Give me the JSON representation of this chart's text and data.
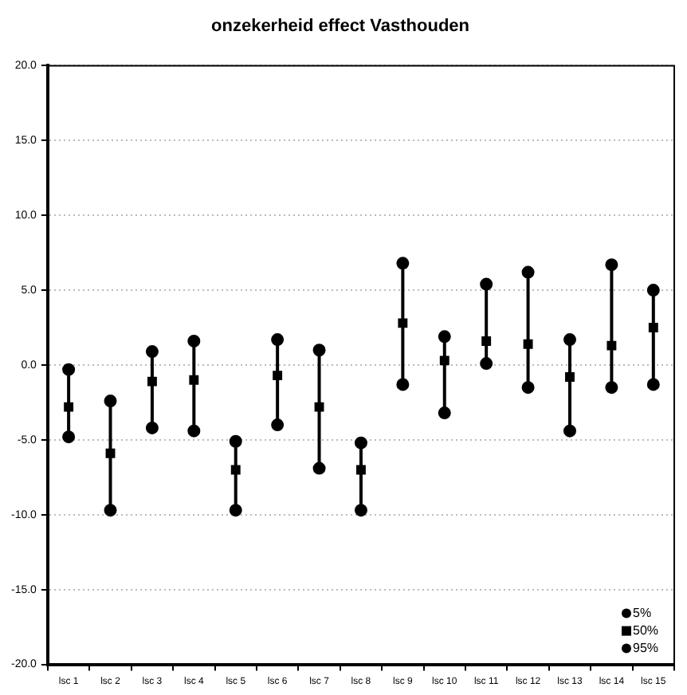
{
  "chart_data": {
    "type": "scatter",
    "title": "onzekerheid effect Vasthouden",
    "categories": [
      "lsc 1",
      "lsc 2",
      "lsc 3",
      "lsc 4",
      "lsc 5",
      "lsc 6",
      "lsc 7",
      "lsc 8",
      "lsc 9",
      "lsc 10",
      "lsc 11",
      "lsc 12",
      "lsc 13",
      "lsc 14",
      "lsc 15"
    ],
    "series": [
      {
        "name": "5%",
        "color": "#000000",
        "marker": "circle",
        "values": [
          -4.8,
          -9.7,
          -4.2,
          -4.4,
          -9.7,
          -4.0,
          -6.9,
          -9.7,
          -1.3,
          -3.2,
          0.1,
          -1.5,
          -4.4,
          -1.5,
          -1.3
        ]
      },
      {
        "name": "50%",
        "color": "#000000",
        "marker": "square",
        "values": [
          -2.8,
          -5.9,
          -1.1,
          -1.0,
          -7.0,
          -0.7,
          -2.8,
          -7.0,
          2.8,
          0.3,
          1.6,
          1.4,
          -0.8,
          1.3,
          2.5
        ]
      },
      {
        "name": "95%",
        "color": "#000000",
        "marker": "circle",
        "values": [
          -0.3,
          -2.4,
          0.9,
          1.6,
          -5.1,
          1.7,
          1.0,
          -5.2,
          6.8,
          1.9,
          5.4,
          6.2,
          1.7,
          6.7,
          5.0
        ]
      }
    ],
    "ylim": [
      -20,
      20
    ],
    "yticks": [
      {
        "value": -20,
        "label": "-20.0"
      },
      {
        "value": -15,
        "label": "-15.0"
      },
      {
        "value": -10,
        "label": "-10.0"
      },
      {
        "value": -5,
        "label": "-5.0"
      },
      {
        "value": 0,
        "label": "0.0"
      },
      {
        "value": 5,
        "label": "5.0"
      },
      {
        "value": 10,
        "label": "10.0"
      },
      {
        "value": 15,
        "label": "15.0"
      },
      {
        "value": 20,
        "label": "20.0"
      }
    ],
    "grid": "y",
    "legend": "bottom right"
  }
}
